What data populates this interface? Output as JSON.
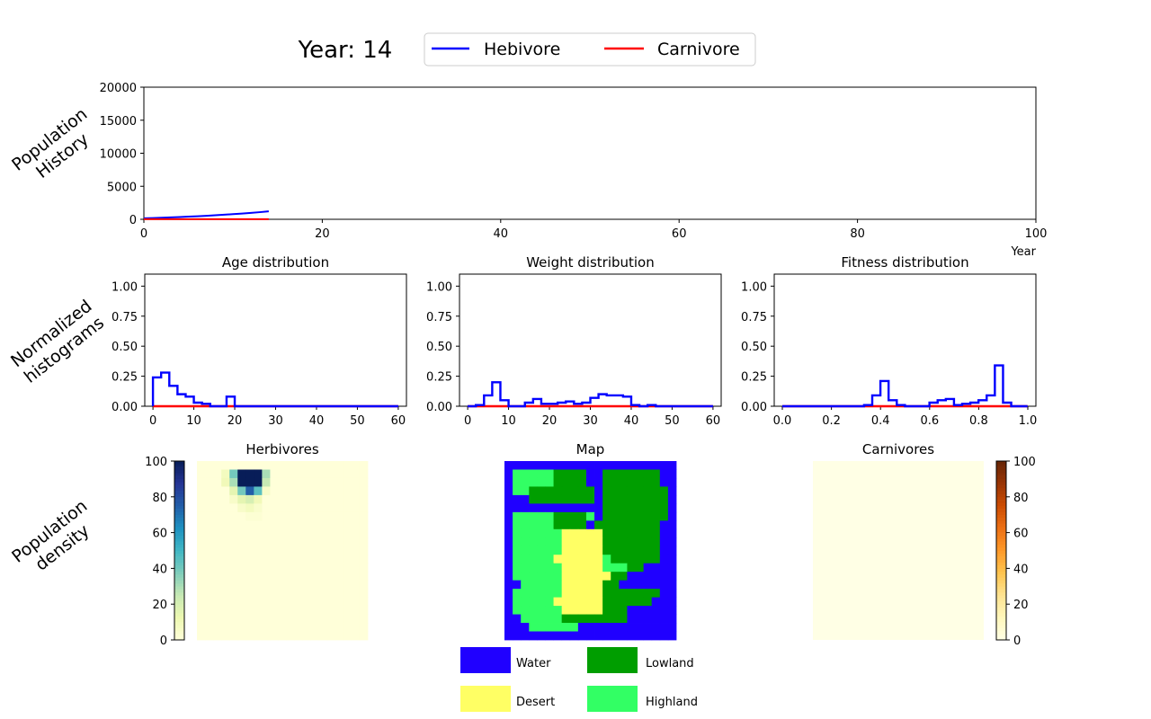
{
  "header": {
    "year_label": "Year: 14",
    "legend": [
      {
        "name": "Hebivore",
        "color": "#0000ff"
      },
      {
        "name": "Carnivore",
        "color": "#ff0000"
      }
    ]
  },
  "row_labels": {
    "history": [
      "Population",
      "History"
    ],
    "histograms": [
      "Normalized",
      "histograms"
    ],
    "density": [
      "Population",
      "density"
    ]
  },
  "chart_data": [
    {
      "type": "line",
      "id": "population-history",
      "title": "",
      "xlabel": "Year",
      "ylabel": "",
      "xlim": [
        0,
        100
      ],
      "ylim": [
        0,
        20000
      ],
      "xticks": [
        0,
        20,
        40,
        60,
        80,
        100
      ],
      "yticks": [
        0,
        5000,
        10000,
        15000,
        20000
      ],
      "x": [
        0,
        1,
        2,
        3,
        4,
        5,
        6,
        7,
        8,
        9,
        10,
        11,
        12,
        13,
        14
      ],
      "series": [
        {
          "name": "Hebivore",
          "color": "#0000ff",
          "values": [
            150,
            190,
            235,
            285,
            340,
            400,
            465,
            535,
            610,
            690,
            780,
            875,
            975,
            1080,
            1200
          ]
        },
        {
          "name": "Carnivore",
          "color": "#ff0000",
          "values": [
            20,
            20,
            20,
            20,
            20,
            20,
            20,
            20,
            20,
            20,
            20,
            20,
            20,
            20,
            20
          ]
        }
      ]
    },
    {
      "type": "histogram",
      "id": "age-distribution",
      "title": "Age distribution",
      "xlim": [
        -2,
        62
      ],
      "ylim": [
        0,
        1.1
      ],
      "xticks": [
        0,
        10,
        20,
        30,
        40,
        50,
        60
      ],
      "yticks": [
        0.0,
        0.25,
        0.5,
        0.75,
        1.0
      ],
      "ytick_labels": [
        "0.00",
        "0.25",
        "0.50",
        "0.75",
        "1.00"
      ],
      "bin_start": 0,
      "bin_width": 2,
      "series": [
        {
          "name": "Hebivore",
          "color": "#0000ff",
          "values": [
            0.24,
            0.28,
            0.17,
            0.1,
            0.08,
            0.03,
            0.02,
            0.0,
            0.0,
            0.08,
            0.0,
            0.0,
            0.0,
            0.0,
            0.0,
            0.0,
            0.0,
            0.0,
            0.0,
            0.0,
            0.0,
            0.0,
            0.0,
            0.0,
            0.0,
            0.0,
            0.0,
            0.0,
            0.0,
            0.0
          ]
        },
        {
          "name": "Carnivore",
          "color": "#ff0000",
          "values": [
            0.0,
            0.0,
            0.0,
            0.0,
            0.0,
            0.0,
            0.0,
            0.0,
            0.0,
            0.0,
            0.0,
            0.0,
            0.0,
            0.0,
            0.0,
            0.0,
            0.0,
            0.0,
            0.0,
            0.0,
            0.0,
            0.0,
            0.0,
            0.0,
            0.0,
            0.0,
            0.0,
            0.0,
            0.0,
            0.0
          ]
        }
      ]
    },
    {
      "type": "histogram",
      "id": "weight-distribution",
      "title": "Weight distribution",
      "xlim": [
        -2,
        62
      ],
      "ylim": [
        0,
        1.1
      ],
      "xticks": [
        0,
        10,
        20,
        30,
        40,
        50,
        60
      ],
      "yticks": [
        0.0,
        0.25,
        0.5,
        0.75,
        1.0
      ],
      "ytick_labels": [
        "0.00",
        "0.25",
        "0.50",
        "0.75",
        "1.00"
      ],
      "bin_start": 0,
      "bin_width": 2,
      "series": [
        {
          "name": "Hebivore",
          "color": "#0000ff",
          "values": [
            0.0,
            0.01,
            0.09,
            0.2,
            0.05,
            0.0,
            0.0,
            0.03,
            0.06,
            0.02,
            0.02,
            0.03,
            0.04,
            0.02,
            0.03,
            0.07,
            0.1,
            0.09,
            0.09,
            0.08,
            0.01,
            0.0,
            0.01,
            0.0,
            0.0,
            0.0,
            0.0,
            0.0,
            0.0,
            0.0
          ]
        },
        {
          "name": "Carnivore",
          "color": "#ff0000",
          "values": [
            0.0,
            0.0,
            0.0,
            0.0,
            0.0,
            0.0,
            0.0,
            0.0,
            0.0,
            0.0,
            0.0,
            0.0,
            0.0,
            0.0,
            0.0,
            0.0,
            0.0,
            0.0,
            0.0,
            0.0,
            0.0,
            0.0,
            0.0,
            0.0,
            0.0,
            0.0,
            0.0,
            0.0,
            0.0,
            0.0
          ]
        }
      ]
    },
    {
      "type": "histogram",
      "id": "fitness-distribution",
      "title": "Fitness distribution",
      "xlim": [
        -0.033,
        1.033
      ],
      "ylim": [
        0,
        1.1
      ],
      "xticks": [
        0.0,
        0.2,
        0.4,
        0.6,
        0.8,
        1.0
      ],
      "xtick_labels": [
        "0.0",
        "0.2",
        "0.4",
        "0.6",
        "0.8",
        "1.0"
      ],
      "yticks": [
        0.0,
        0.25,
        0.5,
        0.75,
        1.0
      ],
      "ytick_labels": [
        "0.00",
        "0.25",
        "0.50",
        "0.75",
        "1.00"
      ],
      "bin_start": 0,
      "bin_width": 0.0333,
      "series": [
        {
          "name": "Hebivore",
          "color": "#0000ff",
          "values": [
            0.0,
            0.0,
            0.0,
            0.0,
            0.0,
            0.0,
            0.0,
            0.0,
            0.0,
            0.0,
            0.01,
            0.09,
            0.21,
            0.05,
            0.01,
            0.0,
            0.0,
            0.0,
            0.03,
            0.05,
            0.06,
            0.01,
            0.02,
            0.03,
            0.05,
            0.09,
            0.34,
            0.03,
            0.0,
            0.0
          ]
        },
        {
          "name": "Carnivore",
          "color": "#ff0000",
          "values": [
            0.0,
            0.0,
            0.0,
            0.0,
            0.0,
            0.0,
            0.0,
            0.0,
            0.0,
            0.0,
            0.0,
            0.0,
            0.0,
            0.0,
            0.0,
            0.0,
            0.0,
            0.0,
            0.0,
            0.0,
            0.0,
            0.0,
            0.0,
            0.0,
            0.0,
            0.0,
            0.0,
            0.0,
            0.0,
            0.0
          ]
        }
      ]
    },
    {
      "type": "heatmap",
      "id": "herbivore-density",
      "title": "Herbivores",
      "vmin": 0,
      "vmax": 100,
      "colorbar_ticks": [
        0,
        20,
        40,
        60,
        80,
        100
      ],
      "colormap": "YlGnBu",
      "grid": [
        [
          0,
          0,
          0,
          0,
          0,
          0,
          0,
          0,
          0,
          0,
          0,
          0,
          0,
          0,
          0,
          0,
          0,
          0,
          0,
          0,
          0
        ],
        [
          0,
          0,
          0,
          8,
          40,
          100,
          100,
          100,
          30,
          0,
          0,
          0,
          0,
          0,
          0,
          0,
          0,
          0,
          0,
          0,
          0
        ],
        [
          0,
          0,
          0,
          10,
          30,
          100,
          100,
          100,
          25,
          0,
          0,
          0,
          0,
          0,
          0,
          0,
          0,
          0,
          0,
          0,
          0
        ],
        [
          0,
          0,
          0,
          0,
          15,
          40,
          75,
          45,
          5,
          0,
          0,
          0,
          0,
          0,
          0,
          0,
          0,
          0,
          0,
          0,
          0
        ],
        [
          0,
          0,
          0,
          0,
          5,
          15,
          20,
          10,
          0,
          0,
          0,
          0,
          0,
          0,
          0,
          0,
          0,
          0,
          0,
          0,
          0
        ],
        [
          0,
          0,
          0,
          0,
          0,
          5,
          8,
          4,
          0,
          0,
          0,
          0,
          0,
          0,
          0,
          0,
          0,
          0,
          0,
          0,
          0
        ],
        [
          0,
          0,
          0,
          0,
          0,
          0,
          2,
          2,
          0,
          0,
          0,
          0,
          0,
          0,
          0,
          0,
          0,
          0,
          0,
          0,
          0
        ],
        [
          0,
          0,
          0,
          0,
          0,
          0,
          0,
          0,
          0,
          0,
          0,
          0,
          0,
          0,
          0,
          0,
          0,
          0,
          0,
          0,
          0
        ],
        [
          0,
          0,
          0,
          0,
          0,
          0,
          0,
          0,
          0,
          0,
          0,
          0,
          0,
          0,
          0,
          0,
          0,
          0,
          0,
          0,
          0
        ],
        [
          0,
          0,
          0,
          0,
          0,
          0,
          0,
          0,
          0,
          0,
          0,
          0,
          0,
          0,
          0,
          0,
          0,
          0,
          0,
          0,
          0
        ],
        [
          0,
          0,
          0,
          0,
          0,
          0,
          0,
          0,
          0,
          0,
          0,
          0,
          0,
          0,
          0,
          0,
          0,
          0,
          0,
          0,
          0
        ],
        [
          0,
          0,
          0,
          0,
          0,
          0,
          0,
          0,
          0,
          0,
          0,
          0,
          0,
          0,
          0,
          0,
          0,
          0,
          0,
          0,
          0
        ],
        [
          0,
          0,
          0,
          0,
          0,
          0,
          0,
          0,
          0,
          0,
          0,
          0,
          0,
          0,
          0,
          0,
          0,
          0,
          0,
          0,
          0
        ],
        [
          0,
          0,
          0,
          0,
          0,
          0,
          0,
          0,
          0,
          0,
          0,
          0,
          0,
          0,
          0,
          0,
          0,
          0,
          0,
          0,
          0
        ],
        [
          0,
          0,
          0,
          0,
          0,
          0,
          0,
          0,
          0,
          0,
          0,
          0,
          0,
          0,
          0,
          0,
          0,
          0,
          0,
          0,
          0
        ],
        [
          0,
          0,
          0,
          0,
          0,
          0,
          0,
          0,
          0,
          0,
          0,
          0,
          0,
          0,
          0,
          0,
          0,
          0,
          0,
          0,
          0
        ],
        [
          0,
          0,
          0,
          0,
          0,
          0,
          0,
          0,
          0,
          0,
          0,
          0,
          0,
          0,
          0,
          0,
          0,
          0,
          0,
          0,
          0
        ],
        [
          0,
          0,
          0,
          0,
          0,
          0,
          0,
          0,
          0,
          0,
          0,
          0,
          0,
          0,
          0,
          0,
          0,
          0,
          0,
          0,
          0
        ],
        [
          0,
          0,
          0,
          0,
          0,
          0,
          0,
          0,
          0,
          0,
          0,
          0,
          0,
          0,
          0,
          0,
          0,
          0,
          0,
          0,
          0
        ],
        [
          0,
          0,
          0,
          0,
          0,
          0,
          0,
          0,
          0,
          0,
          0,
          0,
          0,
          0,
          0,
          0,
          0,
          0,
          0,
          0,
          0
        ],
        [
          0,
          0,
          0,
          0,
          0,
          0,
          0,
          0,
          0,
          0,
          0,
          0,
          0,
          0,
          0,
          0,
          0,
          0,
          0,
          0,
          0
        ]
      ]
    },
    {
      "type": "heatmap",
      "id": "island-map",
      "title": "Map",
      "legend": [
        {
          "code": "W",
          "name": "Water",
          "color": "#2000ff"
        },
        {
          "code": "L",
          "name": "Lowland",
          "color": "#009e00"
        },
        {
          "code": "D",
          "name": "Desert",
          "color": "#ffff64"
        },
        {
          "code": "H",
          "name": "Highland",
          "color": "#32ff64"
        }
      ],
      "rows": [
        "WWWWWWWWWWWWWWWWWWWWW",
        "WHHHHHLLLLWWLLLLLLLWW",
        "WHHHHHLLLLWWLLLLLLLWW",
        "WHHLLLLLLLLWLLLLLLLLW",
        "WWWLLLLLLLLWLLLLLLLLW",
        "WWWWWWWWWWWWLLLLLLLLW",
        "WHHHHHLLLLHWLLLLLLLLW",
        "WHHHHHLLLLWLLLLLLLLWW",
        "WHHHHHHDDDDDLLLLLLLWW",
        "WHHHHHHDDDDDLLLLLLLWW",
        "WHHHHHHDDDDDLLLLLLLWW",
        "WHHHHHDDDDDDHLLLLLLWW",
        "WHHHHHHDDDDDHHHLLWWWW",
        "WHHHHHHDDDDDDLLWWWWWW",
        "WWHHHHHDDDDDLLWWWWWWW",
        "WHHHHHHDDDDDLLLLLLLWW",
        "WHHHHHDDDDDDLLLLLLWWW",
        "WHHHHHHDDDDDLLLWWWWWW",
        "WWHHHHHLLLLLLLLWWWWWW",
        "WWWHHHHHHWWWWWWWWWWWW",
        "WWWWWWWWWWWWWWWWWWWWW"
      ]
    },
    {
      "type": "heatmap",
      "id": "carnivore-density",
      "title": "Carnivores",
      "vmin": 0,
      "vmax": 100,
      "colorbar_ticks": [
        0,
        20,
        40,
        60,
        80,
        100
      ],
      "colormap": "YlOrBr",
      "fill_value": 0
    }
  ]
}
